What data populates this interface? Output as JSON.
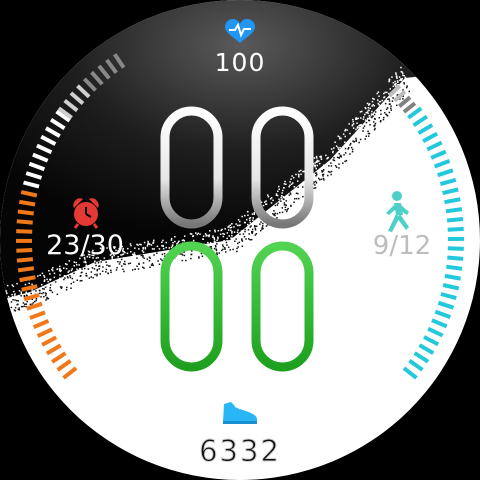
{
  "heart_rate": {
    "value": "100",
    "icon": "heart-pulse-icon",
    "color": "#2196f3"
  },
  "timer": {
    "value": "23/30",
    "icon": "alarm-clock-icon",
    "color": "#e53935"
  },
  "activity_goal": {
    "value": "9/12",
    "icon": "walking-person-icon",
    "color": "#4dd0c8"
  },
  "steps": {
    "value": "6332",
    "icon": "sneaker-icon",
    "color": "#29b6f6"
  },
  "time": {
    "hours": "00",
    "minutes": "00"
  },
  "colors": {
    "hours_digits": "#ffffff",
    "minutes_digits": "#2ec02e",
    "left_gauge": "#f07818",
    "right_gauge": "#22c8dc",
    "top_gauge": "#a0a0a0"
  }
}
